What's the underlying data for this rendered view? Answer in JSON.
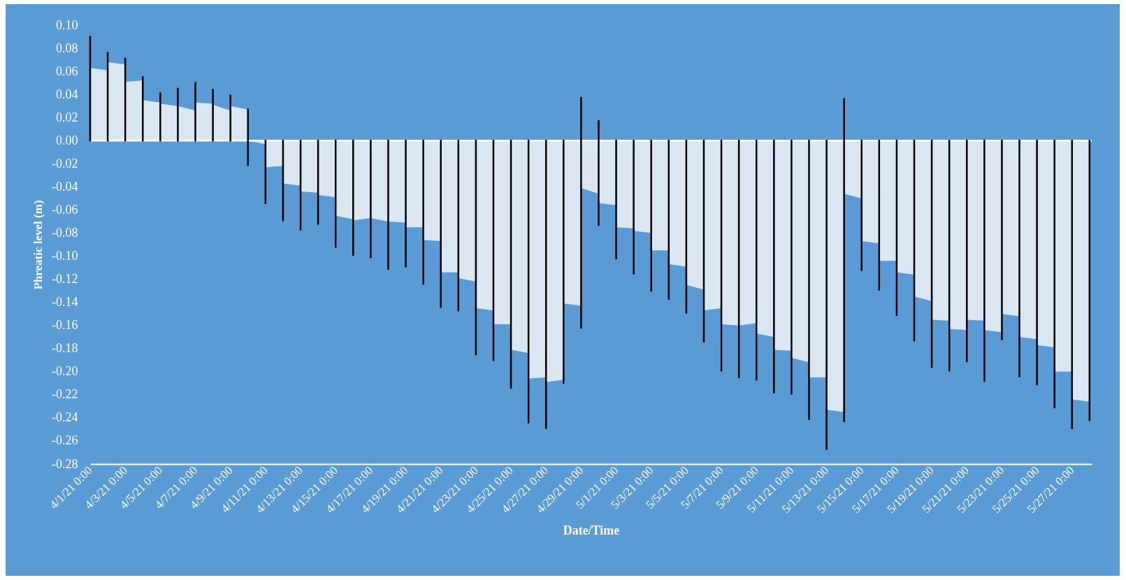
{
  "chart_data": {
    "type": "area",
    "xlabel": "Date/Time",
    "ylabel": "Phreatic level (m)",
    "x": [
      "--04-01T00:00",
      "--04-01T23:59",
      "--04-02T00:00",
      "--04-02T23:59",
      "--04-03T00:00",
      "--04-03T23:59",
      "--04-04T00:00",
      "--04-04T23:59",
      "--04-05T00:00",
      "--04-05T23:59",
      "--04-06T00:00",
      "--04-06T23:59",
      "--04-07T00:00",
      "--04-07T23:59",
      "--04-08T00:00",
      "--04-08T23:59",
      "--04-09T00:00",
      "--04-09T23:59",
      "--04-10T00:00",
      "--04-10T23:59",
      "--04-11T00:00",
      "--04-11T23:59",
      "--04-12T00:00",
      "--04-12T23:59",
      "--04-13T00:00",
      "--04-13T23:59",
      "--04-14T00:00",
      "--04-14T23:59",
      "--04-15T00:00",
      "--04-15T23:59",
      "--04-16T00:00",
      "--04-16T23:59",
      "--04-17T00:00",
      "--04-17T23:59",
      "--04-18T00:00",
      "--04-18T23:59",
      "--04-19T00:00",
      "--04-19T23:59",
      "--04-20T00:00",
      "--04-20T23:59",
      "--04-21T00:00",
      "--04-21T23:59",
      "--04-22T00:00",
      "--04-22T23:59",
      "--04-23T00:00",
      "--04-23T23:59",
      "--04-24T00:00",
      "--04-24T23:59",
      "--04-25T00:00",
      "--04-25T23:59",
      "--04-26T00:00",
      "--04-26T23:59",
      "--04-27T00:00",
      "--04-27T23:59",
      "--04-28T00:00",
      "--04-28T23:59",
      "--04-29T00:00",
      "--04-29T23:59",
      "--04-30T00:00",
      "--04-30T23:59",
      "--05-01T00:00",
      "--05-01T23:59",
      "--05-02T00:00",
      "--05-02T23:59",
      "--05-03T00:00",
      "--05-03T23:59",
      "--05-04T00:00",
      "--05-04T23:59",
      "--05-05T00:00",
      "--05-05T23:59",
      "--05-06T00:00",
      "--05-06T23:59",
      "--05-07T00:00",
      "--05-07T23:59",
      "--05-08T00:00",
      "--05-08T23:59",
      "--05-09T00:00",
      "--05-09T23:59",
      "--05-10T00:00",
      "--05-10T23:59",
      "--05-11T00:00",
      "--05-11T23:59",
      "--05-12T00:00",
      "--05-12T23:59",
      "--05-13T00:00",
      "--05-13T23:59",
      "--05-14T00:00",
      "--05-14T23:59",
      "--05-15T00:00",
      "--05-15T23:59",
      "--05-16T00:00",
      "--05-16T23:59",
      "--05-17T00:00",
      "--05-17T23:59",
      "--05-18T00:00",
      "--05-18T23:59",
      "--05-19T00:00",
      "--05-19T23:59",
      "--05-20T00:00",
      "--05-20T23:59",
      "--05-21T00:00",
      "--05-21T23:59",
      "--05-22T00:00",
      "--05-22T23:59",
      "--05-23T00:00",
      "--05-23T23:59",
      "--05-24T00:00",
      "--05-24T23:59",
      "--05-25T00:00",
      "--05-25T23:59",
      "--05-26T00:00",
      "--05-26T23:59",
      "--05-27T00:00",
      "--05-28T00:00"
    ],
    "series": [
      {
        "color": "#dae6f2",
        "values": [
          0.063,
          0.061,
          0.068,
          0.066,
          0.051,
          0.052,
          0.035,
          0.033,
          0.032,
          0.03,
          0.03,
          0.026,
          0.033,
          0.032,
          0.031,
          0.026,
          0.03,
          0.027,
          0.0,
          -0.003,
          -0.023,
          -0.022,
          -0.037,
          -0.039,
          -0.044,
          -0.045,
          -0.047,
          -0.049,
          -0.065,
          -0.068,
          -0.069,
          -0.067,
          -0.067,
          -0.07,
          -0.07,
          -0.071,
          -0.075,
          -0.075,
          -0.086,
          -0.087,
          -0.114,
          -0.114,
          -0.119,
          -0.122,
          -0.145,
          -0.147,
          -0.159,
          -0.159,
          -0.181,
          -0.184,
          -0.206,
          -0.205,
          -0.209,
          -0.207,
          -0.141,
          -0.143,
          -0.041,
          -0.046,
          -0.054,
          -0.056,
          -0.075,
          -0.076,
          -0.078,
          -0.08,
          -0.095,
          -0.095,
          -0.107,
          -0.109,
          -0.125,
          -0.129,
          -0.147,
          -0.145,
          -0.159,
          -0.16,
          -0.16,
          -0.158,
          -0.167,
          -0.17,
          -0.181,
          -0.182,
          -0.188,
          -0.192,
          -0.205,
          -0.205,
          -0.233,
          -0.235,
          -0.046,
          -0.05,
          -0.087,
          -0.089,
          -0.104,
          -0.104,
          -0.114,
          -0.116,
          -0.135,
          -0.139,
          -0.155,
          -0.156,
          -0.163,
          -0.164,
          -0.155,
          -0.156,
          -0.164,
          -0.166,
          -0.15,
          -0.152,
          -0.17,
          -0.172,
          -0.177,
          -0.179,
          -0.2,
          -0.2,
          -0.224,
          -0.226
        ],
        "errors": [
          [
            0,
            0.09
          ],
          null,
          [
            0,
            0.076
          ],
          null,
          [
            0,
            0.071
          ],
          null,
          [
            0,
            0.055
          ],
          null,
          [
            0,
            0.041
          ],
          null,
          [
            0,
            0.045
          ],
          null,
          [
            0,
            0.05
          ],
          null,
          [
            0,
            0.044
          ],
          null,
          [
            0,
            0.039
          ],
          null,
          [
            -0.021,
            0.027
          ],
          null,
          [
            -0.054,
            0
          ],
          null,
          [
            -0.069,
            0
          ],
          null,
          [
            -0.077,
            0
          ],
          null,
          [
            -0.072,
            0
          ],
          null,
          [
            -0.092,
            0
          ],
          null,
          [
            -0.099,
            0
          ],
          null,
          [
            -0.101,
            0
          ],
          null,
          [
            -0.111,
            0
          ],
          null,
          [
            -0.109,
            0
          ],
          null,
          [
            -0.124,
            0
          ],
          null,
          [
            -0.144,
            0
          ],
          null,
          [
            -0.147,
            0
          ],
          null,
          [
            -0.185,
            0
          ],
          null,
          [
            -0.19,
            0
          ],
          null,
          [
            -0.214,
            0
          ],
          null,
          [
            -0.244,
            0
          ],
          null,
          [
            -0.249,
            0
          ],
          null,
          [
            -0.21,
            0
          ],
          null,
          [
            -0.162,
            0.037
          ],
          null,
          [
            -0.073,
            0.017
          ],
          null,
          [
            -0.102,
            0
          ],
          null,
          [
            -0.115,
            0
          ],
          null,
          [
            -0.13,
            0
          ],
          null,
          [
            -0.137,
            0
          ],
          null,
          [
            -0.149,
            0
          ],
          null,
          [
            -0.174,
            0
          ],
          null,
          [
            -0.199,
            0
          ],
          null,
          [
            -0.205,
            0
          ],
          null,
          [
            -0.207,
            0
          ],
          null,
          [
            -0.218,
            0
          ],
          null,
          [
            -0.219,
            0
          ],
          null,
          [
            -0.241,
            0
          ],
          null,
          [
            -0.267,
            0
          ],
          null,
          [
            -0.243,
            0.036
          ],
          null,
          [
            -0.112,
            0
          ],
          null,
          [
            -0.129,
            0
          ],
          null,
          [
            -0.151,
            0
          ],
          null,
          [
            -0.173,
            0
          ],
          null,
          [
            -0.196,
            0
          ],
          null,
          [
            -0.199,
            0
          ],
          null,
          [
            -0.191,
            0
          ],
          null,
          [
            -0.208,
            0
          ],
          null,
          [
            -0.172,
            0
          ],
          null,
          [
            -0.204,
            0
          ],
          null,
          [
            -0.211,
            0
          ],
          null,
          [
            -0.231,
            0
          ],
          null,
          [
            -0.249,
            0
          ],
          [
            -0.242,
            0
          ]
        ]
      }
    ],
    "xlim": [
      "--04-01T00:00",
      "--05-28T03:00"
    ],
    "xticks": [
      {
        "value": "--04-01",
        "label": "4/1/21 0:00"
      },
      {
        "value": "--04-03",
        "label": "4/3/21 0:00"
      },
      {
        "value": "--04-05",
        "label": "4/5/21 0:00"
      },
      {
        "value": "--04-07",
        "label": "4/7/21 0:00"
      },
      {
        "value": "--04-09",
        "label": "4/9/21 0:00"
      },
      {
        "value": "--04-11",
        "label": "4/11/21 0:00"
      },
      {
        "value": "--04-13",
        "label": "4/13/21 0:00"
      },
      {
        "value": "--04-15",
        "label": "4/15/21 0:00"
      },
      {
        "value": "--04-17",
        "label": "4/17/21 0:00"
      },
      {
        "value": "--04-19",
        "label": "4/19/21 0:00"
      },
      {
        "value": "--04-21",
        "label": "4/21/21 0:00"
      },
      {
        "value": "--04-23",
        "label": "4/23/21 0:00"
      },
      {
        "value": "--04-25",
        "label": "4/25/21 0:00"
      },
      {
        "value": "--04-27",
        "label": "4/27/21 0:00"
      },
      {
        "value": "--04-29",
        "label": "4/29/21 0:00"
      },
      {
        "value": "--05-01",
        "label": "5/1/21 0:00"
      },
      {
        "value": "--05-03",
        "label": "5/3/21 0:00"
      },
      {
        "value": "--05-05",
        "label": "5/5/21 0:00"
      },
      {
        "value": "--05-07",
        "label": "5/7/21 0:00"
      },
      {
        "value": "--05-09",
        "label": "5/9/21 0:00"
      },
      {
        "value": "--05-11",
        "label": "5/11/21 0:00"
      },
      {
        "value": "--05-13",
        "label": "5/13/21 0:00"
      },
      {
        "value": "--05-15",
        "label": "5/15/21 0:00"
      },
      {
        "value": "--05-17",
        "label": "5/17/21 0:00"
      },
      {
        "value": "--05-19",
        "label": "5/19/21 0:00"
      },
      {
        "value": "--05-21",
        "label": "5/21/21 0:00"
      },
      {
        "value": "--05-23",
        "label": "5/23/21 0:00"
      },
      {
        "value": "--05-25",
        "label": "5/25/21 0:00"
      },
      {
        "value": "--05-27",
        "label": "5/27/21 0:00"
      }
    ],
    "ylim": [
      -0.28,
      0.1
    ],
    "yticks": [
      {
        "value": 0.1,
        "label": "0.10"
      },
      {
        "value": 0.08,
        "label": "0.08"
      },
      {
        "value": 0.06,
        "label": "0.06"
      },
      {
        "value": 0.04,
        "label": "0.04"
      },
      {
        "value": 0.02,
        "label": "0.02"
      },
      {
        "value": 0,
        "label": "0.00"
      },
      {
        "value": -0.02,
        "label": "-0.02"
      },
      {
        "value": -0.04,
        "label": "-0.04"
      },
      {
        "value": -0.06,
        "label": "-0.06"
      },
      {
        "value": -0.08,
        "label": "-0.08"
      },
      {
        "value": -0.1,
        "label": "-0.10"
      },
      {
        "value": -0.12,
        "label": "-0.12"
      },
      {
        "value": -0.14,
        "label": "-0.14"
      },
      {
        "value": -0.16,
        "label": "-0.16"
      },
      {
        "value": -0.18,
        "label": "-0.18"
      },
      {
        "value": -0.2,
        "label": "-0.20"
      },
      {
        "value": -0.22,
        "label": "-0.22"
      },
      {
        "value": -0.24,
        "label": "-0.24"
      },
      {
        "value": -0.26,
        "label": "-0.26"
      },
      {
        "value": -0.28,
        "label": "-0.28"
      }
    ],
    "ref_lines": [
      {
        "axis": "y",
        "value": 0,
        "color": "#ffffff"
      }
    ]
  }
}
